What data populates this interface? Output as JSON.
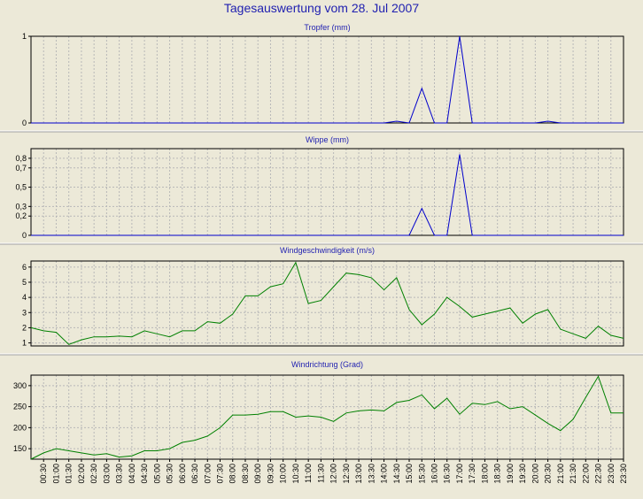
{
  "page": {
    "title": "Tagesauswertung vom 28. Jul 2007"
  },
  "chart_data": [
    {
      "type": "line",
      "title": "Tropfer (mm)",
      "color": "#0000CC",
      "ylim": [
        0,
        1
      ],
      "y_ticks": [
        0,
        1
      ],
      "y_tick_labels": [
        "0",
        "1"
      ],
      "x": [
        0.0,
        0.5,
        1.0,
        1.5,
        2.0,
        2.5,
        3.0,
        3.5,
        4.0,
        4.5,
        5.0,
        5.5,
        6.0,
        6.5,
        7.0,
        7.5,
        8.0,
        8.5,
        9.0,
        9.5,
        10.0,
        10.5,
        11.0,
        11.5,
        12.0,
        12.5,
        13.0,
        13.5,
        14.0,
        14.5,
        15.0,
        15.5,
        16.0,
        16.5,
        17.0,
        17.5,
        18.0,
        18.5,
        19.0,
        19.5,
        20.0,
        20.5,
        21.0,
        21.5,
        22.0,
        22.5,
        23.0,
        23.5
      ],
      "values": [
        0,
        0,
        0,
        0,
        0,
        0,
        0,
        0,
        0,
        0,
        0,
        0,
        0,
        0,
        0,
        0,
        0,
        0,
        0,
        0,
        0,
        0,
        0,
        0,
        0,
        0,
        0,
        0,
        0,
        0.02,
        0,
        0.4,
        0,
        0,
        1,
        0,
        0,
        0,
        0,
        0,
        0,
        0.02,
        0,
        0,
        0,
        0,
        0,
        0
      ]
    },
    {
      "type": "line",
      "title": "Wippe (mm)",
      "color": "#0000CC",
      "ylim": [
        0,
        0.9
      ],
      "y_ticks": [
        0,
        0.2,
        0.3,
        0.5,
        0.7,
        0.8
      ],
      "y_tick_labels": [
        "0",
        "0,2",
        "0,3",
        "0,5",
        "0,7",
        "0,8"
      ],
      "x": [
        0.0,
        0.5,
        1.0,
        1.5,
        2.0,
        2.5,
        3.0,
        3.5,
        4.0,
        4.5,
        5.0,
        5.5,
        6.0,
        6.5,
        7.0,
        7.5,
        8.0,
        8.5,
        9.0,
        9.5,
        10.0,
        10.5,
        11.0,
        11.5,
        12.0,
        12.5,
        13.0,
        13.5,
        14.0,
        14.5,
        15.0,
        15.5,
        16.0,
        16.5,
        17.0,
        17.5,
        18.0,
        18.5,
        19.0,
        19.5,
        20.0,
        20.5,
        21.0,
        21.5,
        22.0,
        22.5,
        23.0,
        23.5
      ],
      "values": [
        0,
        0,
        0,
        0,
        0,
        0,
        0,
        0,
        0,
        0,
        0,
        0,
        0,
        0,
        0,
        0,
        0,
        0,
        0,
        0,
        0,
        0,
        0,
        0,
        0,
        0,
        0,
        0,
        0,
        0,
        0,
        0.28,
        0,
        0,
        0.84,
        0,
        0,
        0,
        0,
        0,
        0,
        0,
        0,
        0,
        0,
        0,
        0,
        0
      ]
    },
    {
      "type": "line",
      "title": "Windgeschwindigkeit (m/s)",
      "color": "#008000",
      "ylim": [
        0.8,
        6.4
      ],
      "y_ticks": [
        1,
        2,
        3,
        4,
        5,
        6
      ],
      "y_tick_labels": [
        "1",
        "2",
        "3",
        "4",
        "5",
        "6"
      ],
      "x": [
        0.0,
        0.5,
        1.0,
        1.5,
        2.0,
        2.5,
        3.0,
        3.5,
        4.0,
        4.5,
        5.0,
        5.5,
        6.0,
        6.5,
        7.0,
        7.5,
        8.0,
        8.5,
        9.0,
        9.5,
        10.0,
        10.5,
        11.0,
        11.5,
        12.0,
        12.5,
        13.0,
        13.5,
        14.0,
        14.5,
        15.0,
        15.5,
        16.0,
        16.5,
        17.0,
        17.5,
        18.0,
        18.5,
        19.0,
        19.5,
        20.0,
        20.5,
        21.0,
        21.5,
        22.0,
        22.5,
        23.0,
        23.5
      ],
      "values": [
        2.0,
        1.8,
        1.7,
        0.9,
        1.2,
        1.4,
        1.4,
        1.45,
        1.4,
        1.8,
        1.6,
        1.4,
        1.8,
        1.8,
        2.4,
        2.3,
        2.9,
        4.1,
        4.1,
        4.7,
        4.9,
        6.3,
        3.6,
        3.8,
        4.7,
        5.6,
        5.5,
        5.3,
        4.5,
        5.3,
        3.2,
        2.2,
        2.9,
        4.0,
        3.4,
        2.7,
        2.9,
        3.1,
        3.3,
        2.3,
        2.9,
        3.2,
        1.9,
        1.6,
        1.3,
        2.1,
        1.5,
        1.3
      ]
    },
    {
      "type": "line",
      "title": "Windrichtung (Grad)",
      "color": "#008000",
      "ylim": [
        125,
        325
      ],
      "y_ticks": [
        150,
        200,
        250,
        300
      ],
      "y_tick_labels": [
        "150",
        "200",
        "250",
        "300"
      ],
      "x": [
        0.0,
        0.5,
        1.0,
        1.5,
        2.0,
        2.5,
        3.0,
        3.5,
        4.0,
        4.5,
        5.0,
        5.5,
        6.0,
        6.5,
        7.0,
        7.5,
        8.0,
        8.5,
        9.0,
        9.5,
        10.0,
        10.5,
        11.0,
        11.5,
        12.0,
        12.5,
        13.0,
        13.5,
        14.0,
        14.5,
        15.0,
        15.5,
        16.0,
        16.5,
        17.0,
        17.5,
        18.0,
        18.5,
        19.0,
        19.5,
        20.0,
        20.5,
        21.0,
        21.5,
        22.0,
        22.5,
        23.0,
        23.5
      ],
      "values": [
        125,
        140,
        150,
        145,
        140,
        135,
        138,
        130,
        133,
        145,
        145,
        150,
        165,
        170,
        180,
        200,
        230,
        230,
        232,
        238,
        238,
        225,
        228,
        225,
        215,
        235,
        240,
        242,
        240,
        260,
        265,
        278,
        245,
        270,
        232,
        258,
        255,
        262,
        245,
        250,
        230,
        210,
        193,
        220,
        272,
        322,
        235,
        235
      ]
    }
  ],
  "x_axis": {
    "tick_labels": [
      "00:30",
      "01:00",
      "01:30",
      "02:00",
      "02:30",
      "03:00",
      "03:30",
      "04:00",
      "04:30",
      "05:00",
      "05:30",
      "06:00",
      "06:30",
      "07:00",
      "07:30",
      "08:00",
      "08:30",
      "09:00",
      "09:30",
      "10:00",
      "10:30",
      "11:00",
      "11:30",
      "12:00",
      "12:30",
      "13:00",
      "13:30",
      "14:00",
      "14:30",
      "15:00",
      "15:30",
      "16:00",
      "16:30",
      "17:00",
      "17:30",
      "18:00",
      "18:30",
      "19:00",
      "19:30",
      "20:00",
      "20:30",
      "21:00",
      "21:30",
      "22:00",
      "22:30",
      "23:00",
      "23:30"
    ]
  },
  "style": {
    "background": "#ECE9D8",
    "axis_color": "#000000",
    "title_color": "#1F1FB0",
    "grid": true
  }
}
